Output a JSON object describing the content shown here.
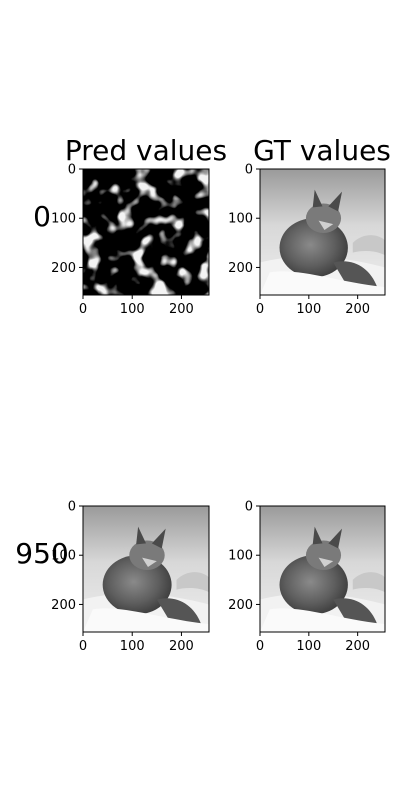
{
  "figure": {
    "column_titles": [
      "Pred values",
      "GT values"
    ],
    "row_labels": [
      "0",
      "950"
    ]
  },
  "chart_data": [
    {
      "type": "heatmap",
      "title": "Pred values",
      "row_label": "0",
      "content": "noisy grayscale prediction",
      "xlim": [
        0,
        256
      ],
      "ylim": [
        256,
        0
      ],
      "xticks": [
        0,
        100,
        200
      ],
      "yticks": [
        0,
        100,
        200
      ],
      "colormap": "gray"
    },
    {
      "type": "heatmap",
      "title": "GT values",
      "row_label": "0",
      "content": "grayscale photo of a fox lying in snow",
      "xlim": [
        0,
        256
      ],
      "ylim": [
        256,
        0
      ],
      "xticks": [
        0,
        100,
        200
      ],
      "yticks": [
        0,
        100,
        200
      ],
      "colormap": "gray"
    },
    {
      "type": "heatmap",
      "title": "",
      "row_label": "950",
      "content": "grayscale photo of a fox lying in snow",
      "xlim": [
        0,
        256
      ],
      "ylim": [
        256,
        0
      ],
      "xticks": [
        0,
        100,
        200
      ],
      "yticks": [
        0,
        100,
        200
      ],
      "colormap": "gray"
    },
    {
      "type": "heatmap",
      "title": "",
      "row_label": "950",
      "content": "grayscale photo of a fox lying in snow",
      "xlim": [
        0,
        256
      ],
      "ylim": [
        256,
        0
      ],
      "xticks": [
        0,
        100,
        200
      ],
      "yticks": [
        0,
        100,
        200
      ],
      "colormap": "gray"
    }
  ]
}
